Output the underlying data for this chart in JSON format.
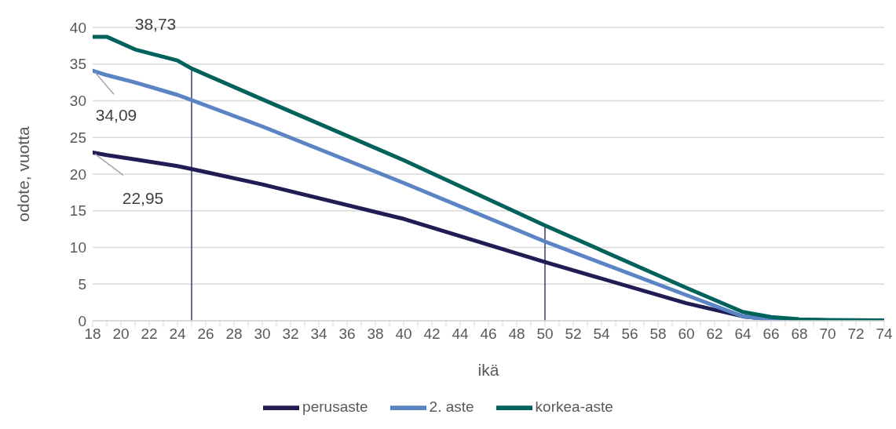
{
  "chart_data": {
    "type": "line",
    "xlabel": "ikä",
    "ylabel": "odote, vuotta",
    "xlim": [
      18,
      74
    ],
    "xticks": [
      18,
      {
        "value": 19,
        "label": null
      },
      20,
      {
        "value": 21,
        "label": null
      },
      22,
      {
        "value": 23,
        "label": null
      },
      24,
      {
        "value": 25,
        "label": null
      },
      26,
      {
        "value": 27,
        "label": null
      },
      28,
      {
        "value": 29,
        "label": null
      },
      30,
      {
        "value": 31,
        "label": null
      },
      32,
      {
        "value": 33,
        "label": null
      },
      34,
      {
        "value": 35,
        "label": null
      },
      36,
      {
        "value": 37,
        "label": null
      },
      38,
      {
        "value": 39,
        "label": null
      },
      40,
      {
        "value": 41,
        "label": null
      },
      42,
      {
        "value": 43,
        "label": null
      },
      44,
      {
        "value": 45,
        "label": null
      },
      46,
      {
        "value": 47,
        "label": null
      },
      48,
      {
        "value": 49,
        "label": null
      },
      50,
      {
        "value": 51,
        "label": null
      },
      52,
      {
        "value": 53,
        "label": null
      },
      54,
      {
        "value": 55,
        "label": null
      },
      56,
      {
        "value": 57,
        "label": null
      },
      58,
      {
        "value": 59,
        "label": null
      },
      60,
      {
        "value": 61,
        "label": null
      },
      62,
      {
        "value": 63,
        "label": null
      },
      64,
      {
        "value": 65,
        "label": null
      },
      66,
      {
        "value": 67,
        "label": null
      },
      68,
      {
        "value": 69,
        "label": null
      },
      70,
      {
        "value": 71,
        "label": null
      },
      72,
      {
        "value": 73,
        "label": null
      },
      74
    ],
    "ylim": [
      0,
      40
    ],
    "yticks": [
      0,
      5,
      10,
      15,
      20,
      25,
      30,
      35,
      40
    ],
    "grid": "y",
    "legend": "bottom",
    "marker": "none",
    "line_style": "solid",
    "x": [
      18,
      19,
      21,
      24,
      25,
      30,
      40,
      50,
      60,
      64,
      66,
      68,
      70,
      74
    ],
    "series": [
      {
        "name": "perusaste",
        "color": "#201d55",
        "values": [
          22.95,
          22.6,
          22,
          21.1,
          20.7,
          18.6,
          13.9,
          8.0,
          2.4,
          0.6,
          0.2,
          0.1,
          0.05,
          0.05
        ],
        "value_labels": [
          "22,95",
          null,
          null,
          null,
          null,
          null,
          null,
          null,
          null,
          null,
          null,
          null,
          null,
          null
        ]
      },
      {
        "name": "2. aste",
        "color": "#5b84c4",
        "values": [
          34.09,
          33.5,
          32.5,
          30.8,
          30.1,
          26.5,
          18.8,
          10.8,
          3.5,
          0.6,
          0.2,
          0.1,
          0.05,
          0.05
        ],
        "value_labels": [
          "34,09",
          null,
          null,
          null,
          null,
          null,
          null,
          null,
          null,
          null,
          null,
          null,
          null,
          null
        ]
      },
      {
        "name": "korkea-aste",
        "color": "#00625a",
        "values": [
          38.73,
          38.73,
          37.0,
          35.5,
          34.4,
          30.2,
          21.9,
          13.0,
          4.5,
          1.2,
          0.5,
          0.2,
          0.1,
          0.05
        ],
        "value_labels": [
          null,
          "38,73",
          null,
          null,
          null,
          null,
          null,
          null,
          null,
          null,
          null,
          null,
          null,
          null
        ]
      }
    ],
    "ref_lines": [
      {
        "axis": "x",
        "value": 25,
        "color": "#201d55"
      },
      {
        "axis": "x",
        "value": 50,
        "color": "#201d55"
      }
    ]
  }
}
